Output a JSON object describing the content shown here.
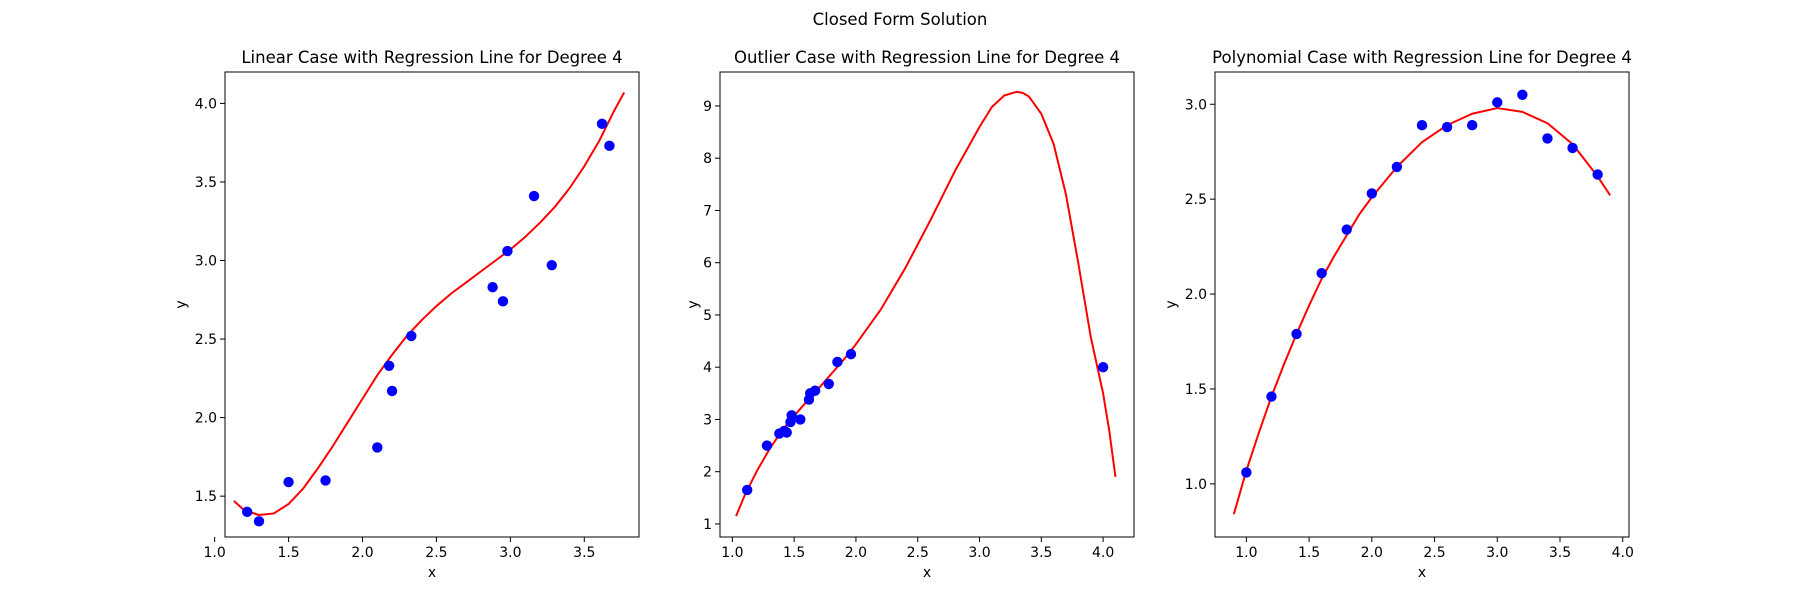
{
  "figure": {
    "suptitle": "Closed Form Solution"
  },
  "chart_data": [
    {
      "type": "scatter",
      "title": "Linear Case with Regression Line for Degree 4",
      "xlabel": "x",
      "ylabel": "y",
      "xlim": [
        1.07,
        3.87
      ],
      "ylim": [
        1.24,
        4.2
      ],
      "xticks": [
        "1.0",
        "1.5",
        "2.0",
        "2.5",
        "3.0",
        "3.5"
      ],
      "yticks": [
        "1.5",
        "2.0",
        "2.5",
        "3.0",
        "3.5",
        "4.0"
      ],
      "grid": false,
      "point_color": "#0000ff",
      "line_color": "#ff0000",
      "series": [
        {
          "x": [
            1.22,
            1.3,
            1.5,
            1.75,
            2.1,
            2.18,
            2.2,
            2.33,
            2.88,
            2.95,
            2.98,
            3.16,
            3.28,
            3.62,
            3.67
          ],
          "y": [
            1.4,
            1.34,
            1.59,
            1.6,
            1.81,
            2.33,
            2.17,
            2.52,
            2.83,
            2.74,
            3.06,
            3.41,
            2.97,
            3.87,
            3.73
          ]
        }
      ],
      "fit_curve": {
        "x": [
          1.13,
          1.2,
          1.3,
          1.4,
          1.5,
          1.6,
          1.7,
          1.8,
          1.9,
          2.0,
          2.1,
          2.2,
          2.3,
          2.4,
          2.5,
          2.6,
          2.7,
          2.8,
          2.9,
          3.0,
          3.1,
          3.2,
          3.3,
          3.4,
          3.5,
          3.6,
          3.7,
          3.77
        ],
        "y": [
          1.47,
          1.41,
          1.38,
          1.39,
          1.45,
          1.55,
          1.68,
          1.82,
          1.97,
          2.12,
          2.27,
          2.4,
          2.52,
          2.62,
          2.71,
          2.79,
          2.86,
          2.93,
          3.0,
          3.07,
          3.15,
          3.24,
          3.34,
          3.46,
          3.6,
          3.76,
          3.95,
          4.07
        ]
      }
    },
    {
      "type": "scatter",
      "title": "Outlier Case with Regression Line for Degree 4",
      "xlabel": "x",
      "ylabel": "y",
      "xlim": [
        0.9,
        4.25
      ],
      "ylim": [
        0.75,
        9.65
      ],
      "xticks": [
        "1.0",
        "1.5",
        "2.0",
        "2.5",
        "3.0",
        "3.5",
        "4.0"
      ],
      "yticks": [
        "1",
        "2",
        "3",
        "4",
        "5",
        "6",
        "7",
        "8",
        "9"
      ],
      "grid": false,
      "point_color": "#0000ff",
      "line_color": "#ff0000",
      "series": [
        {
          "x": [
            1.12,
            1.28,
            1.38,
            1.42,
            1.44,
            1.47,
            1.48,
            1.55,
            1.62,
            1.63,
            1.67,
            1.78,
            1.85,
            1.96,
            4.0
          ],
          "y": [
            1.65,
            2.5,
            2.73,
            2.78,
            2.75,
            2.95,
            3.08,
            3.0,
            3.38,
            3.5,
            3.55,
            3.68,
            4.1,
            4.25,
            4.0
          ]
        }
      ],
      "fit_curve": {
        "x": [
          1.03,
          1.1,
          1.2,
          1.3,
          1.4,
          1.5,
          1.6,
          1.7,
          1.8,
          1.9,
          2.0,
          2.2,
          2.4,
          2.6,
          2.8,
          3.0,
          3.1,
          3.2,
          3.3,
          3.35,
          3.4,
          3.5,
          3.6,
          3.7,
          3.8,
          3.9,
          4.0,
          4.05,
          4.1
        ],
        "y": [
          1.15,
          1.55,
          2.02,
          2.43,
          2.78,
          3.07,
          3.34,
          3.6,
          3.87,
          4.14,
          4.44,
          5.1,
          5.9,
          6.8,
          7.75,
          8.6,
          8.98,
          9.2,
          9.27,
          9.25,
          9.18,
          8.85,
          8.27,
          7.3,
          5.98,
          4.58,
          3.5,
          2.78,
          1.9
        ]
      }
    },
    {
      "type": "scatter",
      "title": "Polynomial Case with Regression Line for Degree 4",
      "xlabel": "x",
      "ylabel": "y",
      "xlim": [
        0.75,
        4.05
      ],
      "ylim": [
        0.72,
        3.17
      ],
      "xticks": [
        "1.0",
        "1.5",
        "2.0",
        "2.5",
        "3.0",
        "3.5",
        "4.0"
      ],
      "yticks": [
        "1.0",
        "1.5",
        "2.0",
        "2.5",
        "3.0"
      ],
      "grid": false,
      "point_color": "#0000ff",
      "line_color": "#ff0000",
      "series": [
        {
          "x": [
            1.0,
            1.2,
            1.4,
            1.6,
            1.8,
            2.0,
            2.2,
            2.4,
            2.6,
            2.8,
            3.0,
            3.2,
            3.4,
            3.6,
            3.8
          ],
          "y": [
            1.06,
            1.46,
            1.79,
            2.11,
            2.34,
            2.53,
            2.67,
            2.89,
            2.88,
            2.89,
            3.01,
            3.05,
            2.82,
            2.77,
            2.63
          ]
        }
      ],
      "fit_curve": {
        "x": [
          0.9,
          1.0,
          1.1,
          1.2,
          1.3,
          1.4,
          1.5,
          1.6,
          1.7,
          1.8,
          1.9,
          2.0,
          2.2,
          2.4,
          2.6,
          2.8,
          3.0,
          3.2,
          3.4,
          3.6,
          3.8,
          3.9
        ],
        "y": [
          0.84,
          1.07,
          1.27,
          1.46,
          1.63,
          1.79,
          1.94,
          2.08,
          2.2,
          2.31,
          2.42,
          2.51,
          2.67,
          2.8,
          2.89,
          2.95,
          2.98,
          2.96,
          2.9,
          2.79,
          2.62,
          2.52
        ]
      }
    }
  ]
}
